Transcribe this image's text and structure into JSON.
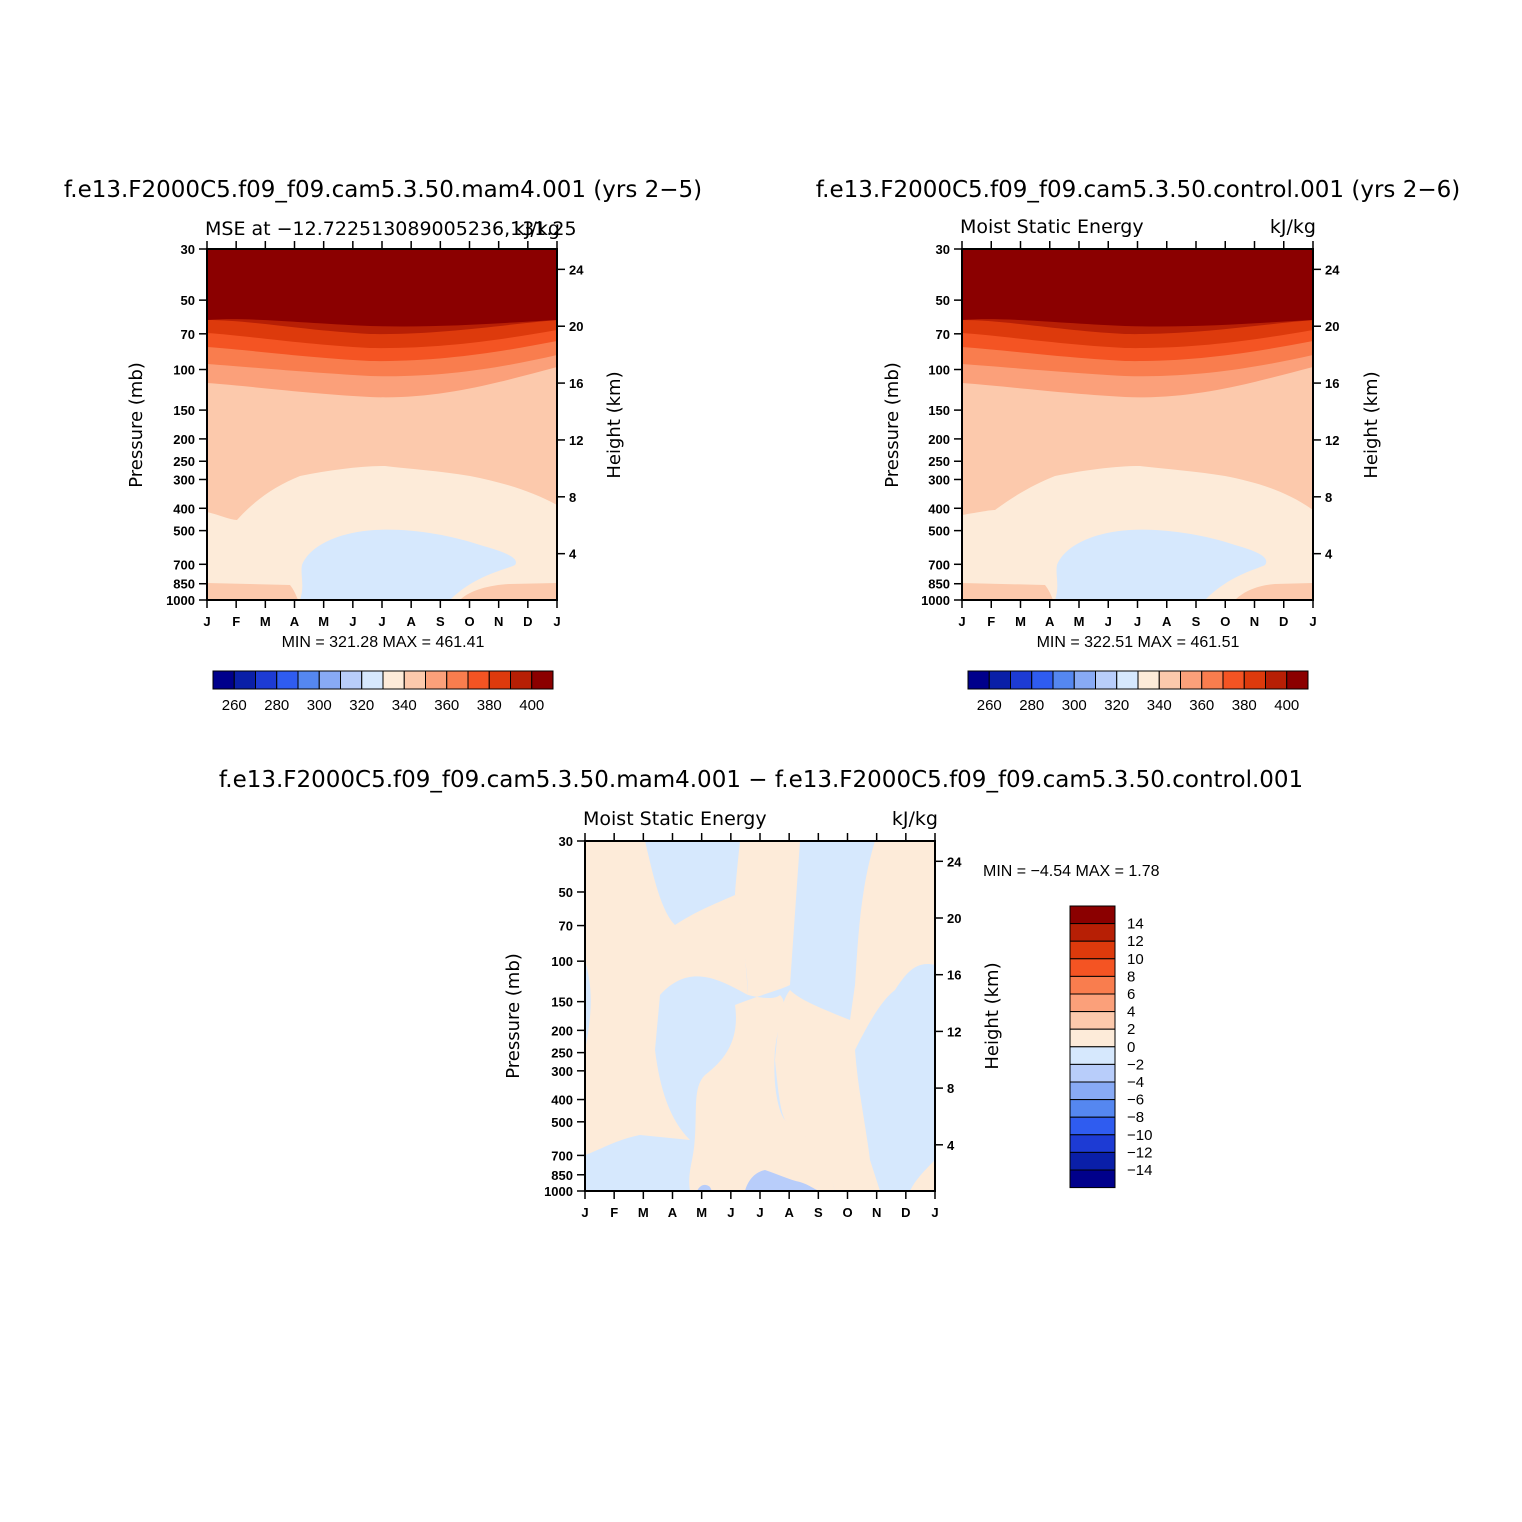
{
  "palette": [
    "#00008b",
    "#0a1fa8",
    "#1d3bd4",
    "#2f5cf0",
    "#5587f0",
    "#88aaf5",
    "#b8cdfa",
    "#d6e8fd",
    "#fdebd9",
    "#fcc9ac",
    "#fba07a",
    "#f97d4e",
    "#f45423",
    "#dd3a0c",
    "#b71f05",
    "#8b0000"
  ],
  "months": [
    "J",
    "F",
    "M",
    "A",
    "M",
    "J",
    "J",
    "A",
    "S",
    "O",
    "N",
    "D",
    "J"
  ],
  "pressure_ticks": [
    "30",
    "50",
    "70",
    "100",
    "150",
    "200",
    "250",
    "300",
    "400",
    "500",
    "700",
    "850",
    "1000"
  ],
  "height_ticks": [
    "24",
    "20",
    "16",
    "12",
    "8",
    "4"
  ],
  "panels": [
    {
      "title": "f.e13.F2000C5.f09_f09.cam5.3.50.mam4.001 (yrs 2−5)",
      "left_label": "MSE at −12.722513089005236,131.25",
      "right_label": "kJ/kg",
      "ylabel": "Pressure (mb)",
      "y2label": "Height (km)",
      "minmax": "MIN = 321.28 MAX = 461.41",
      "colorbar_labels": [
        "260",
        "280",
        "300",
        "320",
        "340",
        "360",
        "380",
        "400"
      ]
    },
    {
      "title": "f.e13.F2000C5.f09_f09.cam5.3.50.control.001 (yrs 2−6)",
      "left_label": "Moist Static Energy",
      "right_label": "kJ/kg",
      "ylabel": "Pressure (mb)",
      "y2label": "Height (km)",
      "minmax": "MIN = 322.51 MAX = 461.51",
      "colorbar_labels": [
        "260",
        "280",
        "300",
        "320",
        "340",
        "360",
        "380",
        "400"
      ]
    },
    {
      "title": "f.e13.F2000C5.f09_f09.cam5.3.50.mam4.001 − f.e13.F2000C5.f09_f09.cam5.3.50.control.001",
      "left_label": "Moist Static Energy",
      "right_label": "kJ/kg",
      "ylabel": "Pressure (mb)",
      "y2label": "Height (km)",
      "minmax": "MIN =   −4.54 MAX =    1.78",
      "colorbar_labels": [
        "14",
        "12",
        "10",
        "8",
        "6",
        "4",
        "2",
        "0",
        "−2",
        "−4",
        "−6",
        "−8",
        "−10",
        "−12",
        "−14"
      ]
    }
  ],
  "chart_data": [
    {
      "type": "heatmap",
      "title": "f.e13.F2000C5.f09_f09.cam5.3.50.mam4.001 (yrs 2−5)",
      "subtitle": "MSE at −12.722513089005236,131.25",
      "units": "kJ/kg",
      "ylabel": "Pressure (mb)",
      "y2label": "Height (km)",
      "x": [
        "J",
        "F",
        "M",
        "A",
        "M",
        "J",
        "J",
        "A",
        "S",
        "O",
        "N",
        "D",
        "J"
      ],
      "yscale": "log",
      "ylim": [
        1000,
        30
      ],
      "levels": [
        260,
        270,
        280,
        290,
        300,
        310,
        320,
        330,
        340,
        350,
        360,
        370,
        380,
        390,
        400
      ],
      "min": 321.28,
      "max": 461.41
    },
    {
      "type": "heatmap",
      "title": "f.e13.F2000C5.f09_f09.cam5.3.50.control.001 (yrs 2−6)",
      "subtitle": "Moist Static Energy",
      "units": "kJ/kg",
      "ylabel": "Pressure (mb)",
      "y2label": "Height (km)",
      "x": [
        "J",
        "F",
        "M",
        "A",
        "M",
        "J",
        "J",
        "A",
        "S",
        "O",
        "N",
        "D",
        "J"
      ],
      "yscale": "log",
      "ylim": [
        1000,
        30
      ],
      "levels": [
        260,
        270,
        280,
        290,
        300,
        310,
        320,
        330,
        340,
        350,
        360,
        370,
        380,
        390,
        400
      ],
      "min": 322.51,
      "max": 461.51
    },
    {
      "type": "heatmap",
      "title": "f.e13.F2000C5.f09_f09.cam5.3.50.mam4.001 − f.e13.F2000C5.f09_f09.cam5.3.50.control.001",
      "subtitle": "Moist Static Energy",
      "units": "kJ/kg",
      "ylabel": "Pressure (mb)",
      "y2label": "Height (km)",
      "x": [
        "J",
        "F",
        "M",
        "A",
        "M",
        "J",
        "J",
        "A",
        "S",
        "O",
        "N",
        "D",
        "J"
      ],
      "yscale": "log",
      "ylim": [
        1000,
        30
      ],
      "levels": [
        -14,
        -12,
        -10,
        -8,
        -6,
        -4,
        -2,
        0,
        2,
        4,
        6,
        8,
        10,
        12,
        14
      ],
      "min": -4.54,
      "max": 1.78
    }
  ]
}
